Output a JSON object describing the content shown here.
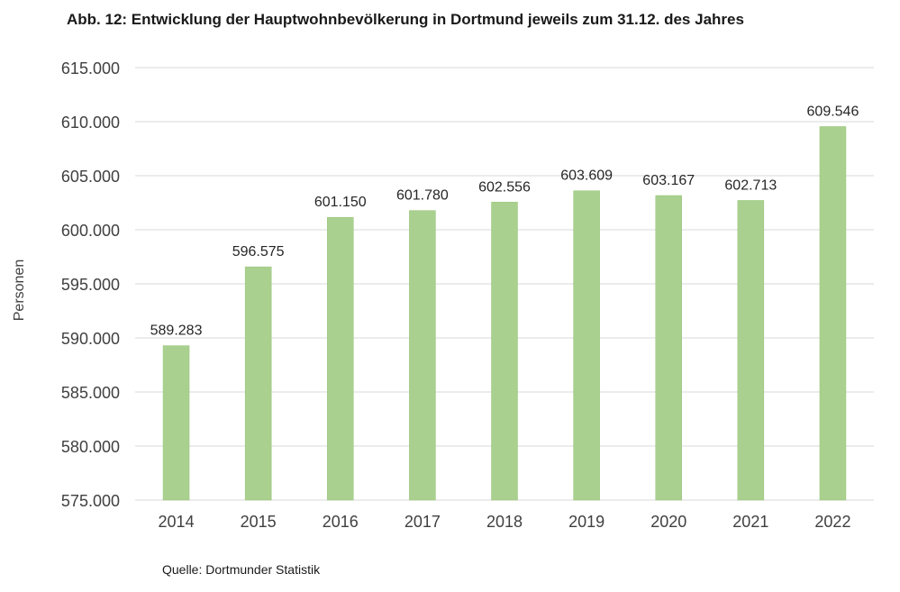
{
  "chart_data": {
    "type": "bar",
    "title": "Abb. 12:  Entwicklung der Hauptwohnbevölkerung in Dortmund jeweils zum 31.12. des Jahres",
    "xlabel": "",
    "ylabel": "Personen",
    "source": "Quelle: Dortmunder Statistik",
    "categories": [
      "2014",
      "2015",
      "2016",
      "2017",
      "2018",
      "2019",
      "2020",
      "2021",
      "2022"
    ],
    "values": [
      589283,
      596575,
      601150,
      601780,
      602556,
      603609,
      603167,
      602713,
      609546
    ],
    "value_labels": [
      "589.283",
      "596.575",
      "601.150",
      "601.780",
      "602.556",
      "603.609",
      "603.167",
      "602.713",
      "609.546"
    ],
    "ylim": [
      575000,
      615000
    ],
    "yticks": [
      575000,
      580000,
      585000,
      590000,
      595000,
      600000,
      605000,
      610000,
      615000
    ],
    "ytick_labels": [
      "575.000",
      "580.000",
      "585.000",
      "590.000",
      "595.000",
      "600.000",
      "605.000",
      "610.000",
      "615.000"
    ],
    "grid": true,
    "legend": "none",
    "colors": {
      "bar": "#a9d08e",
      "bar_edge": "#98c47b",
      "grid": "#d9d9d9",
      "text": "#404040"
    }
  }
}
